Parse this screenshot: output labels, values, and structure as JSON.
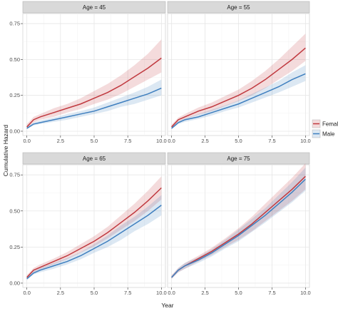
{
  "chart_data": {
    "type": "line",
    "xlabel": "Year",
    "ylabel": "Cumulative Hazard",
    "xlim": [
      -0.3,
      10.3
    ],
    "ylim": [
      -0.03,
      0.82
    ],
    "xticks": [
      0,
      2.5,
      5,
      7.5,
      10
    ],
    "xtick_labels": [
      "0.0",
      "2.5",
      "5.0",
      "7.5",
      "10.0"
    ],
    "yticks": [
      0,
      0.25,
      0.5,
      0.75
    ],
    "ytick_labels": [
      "0.00",
      "0.25",
      "0.50",
      "0.75"
    ],
    "grid": true,
    "legend_position": "right",
    "colors": {
      "Female": "#c0393f",
      "Male": "#3f7fbf",
      "strip_bg": "#d9d9d9"
    },
    "panels": [
      {
        "title": "Age = 45",
        "x": [
          0,
          0.5,
          1,
          2,
          3,
          4,
          5,
          6,
          7,
          8,
          9,
          10
        ],
        "series": [
          {
            "name": "Female",
            "values": [
              0.03,
              0.08,
              0.1,
              0.13,
              0.16,
              0.19,
              0.23,
              0.27,
              0.32,
              0.38,
              0.44,
              0.51
            ],
            "lower": [
              0.02,
              0.06,
              0.08,
              0.1,
              0.13,
              0.155,
              0.19,
              0.22,
              0.26,
              0.31,
              0.36,
              0.41
            ],
            "upper": [
              0.05,
              0.1,
              0.12,
              0.16,
              0.19,
              0.23,
              0.28,
              0.33,
              0.39,
              0.46,
              0.54,
              0.64
            ]
          },
          {
            "name": "Male",
            "values": [
              0.02,
              0.05,
              0.06,
              0.08,
              0.1,
              0.12,
              0.14,
              0.17,
              0.2,
              0.23,
              0.26,
              0.3
            ],
            "lower": [
              0.015,
              0.04,
              0.05,
              0.065,
              0.08,
              0.1,
              0.12,
              0.14,
              0.17,
              0.19,
              0.22,
              0.25
            ],
            "upper": [
              0.03,
              0.06,
              0.075,
              0.095,
              0.12,
              0.14,
              0.165,
              0.2,
              0.235,
              0.27,
              0.31,
              0.36
            ]
          }
        ]
      },
      {
        "title": "Age = 55",
        "x": [
          0,
          0.5,
          1,
          2,
          3,
          4,
          5,
          6,
          7,
          8,
          9,
          10
        ],
        "series": [
          {
            "name": "Female",
            "values": [
              0.03,
              0.08,
              0.1,
              0.14,
              0.17,
              0.21,
              0.25,
              0.3,
              0.36,
              0.43,
              0.5,
              0.58
            ],
            "lower": [
              0.02,
              0.065,
              0.085,
              0.115,
              0.14,
              0.175,
              0.21,
              0.25,
              0.3,
              0.36,
              0.42,
              0.49
            ],
            "upper": [
              0.045,
              0.095,
              0.12,
              0.165,
              0.2,
              0.245,
              0.29,
              0.35,
              0.42,
              0.5,
              0.59,
              0.68
            ]
          },
          {
            "name": "Male",
            "values": [
              0.02,
              0.06,
              0.08,
              0.1,
              0.13,
              0.16,
              0.19,
              0.23,
              0.27,
              0.31,
              0.36,
              0.4
            ],
            "lower": [
              0.015,
              0.05,
              0.065,
              0.085,
              0.11,
              0.14,
              0.165,
              0.2,
              0.235,
              0.27,
              0.31,
              0.35
            ],
            "upper": [
              0.03,
              0.07,
              0.09,
              0.12,
              0.15,
              0.18,
              0.215,
              0.26,
              0.305,
              0.35,
              0.41,
              0.46
            ]
          }
        ]
      },
      {
        "title": "Age = 65",
        "x": [
          0,
          0.5,
          1,
          2,
          3,
          4,
          5,
          6,
          7,
          8,
          9,
          10
        ],
        "series": [
          {
            "name": "Female",
            "values": [
              0.04,
              0.09,
              0.11,
              0.15,
              0.19,
              0.24,
              0.29,
              0.35,
              0.42,
              0.49,
              0.57,
              0.66
            ],
            "lower": [
              0.03,
              0.075,
              0.095,
              0.13,
              0.165,
              0.21,
              0.255,
              0.31,
              0.37,
              0.43,
              0.5,
              0.58
            ],
            "upper": [
              0.055,
              0.105,
              0.13,
              0.17,
              0.215,
              0.27,
              0.325,
              0.39,
              0.47,
              0.55,
              0.64,
              0.74
            ]
          },
          {
            "name": "Male",
            "values": [
              0.03,
              0.07,
              0.09,
              0.12,
              0.15,
              0.19,
              0.24,
              0.29,
              0.35,
              0.41,
              0.47,
              0.54
            ],
            "lower": [
              0.02,
              0.06,
              0.075,
              0.1,
              0.13,
              0.165,
              0.21,
              0.25,
              0.3,
              0.36,
              0.41,
              0.47
            ],
            "upper": [
              0.04,
              0.085,
              0.105,
              0.14,
              0.175,
              0.215,
              0.27,
              0.33,
              0.4,
              0.46,
              0.53,
              0.61
            ]
          }
        ]
      },
      {
        "title": "Age = 75",
        "x": [
          0,
          0.5,
          1,
          2,
          3,
          4,
          5,
          6,
          7,
          8,
          9,
          10
        ],
        "series": [
          {
            "name": "Female",
            "values": [
              0.04,
              0.09,
              0.12,
              0.17,
              0.22,
              0.28,
              0.34,
              0.41,
              0.49,
              0.57,
              0.65,
              0.74
            ],
            "lower": [
              0.03,
              0.075,
              0.1,
              0.15,
              0.195,
              0.25,
              0.3,
              0.36,
              0.43,
              0.5,
              0.57,
              0.65
            ],
            "upper": [
              0.055,
              0.105,
              0.14,
              0.19,
              0.245,
              0.31,
              0.38,
              0.46,
              0.55,
              0.64,
              0.73,
              0.83
            ]
          },
          {
            "name": "Male",
            "values": [
              0.04,
              0.09,
              0.12,
              0.16,
              0.21,
              0.27,
              0.33,
              0.4,
              0.47,
              0.55,
              0.63,
              0.72
            ],
            "lower": [
              0.03,
              0.075,
              0.1,
              0.14,
              0.185,
              0.24,
              0.29,
              0.355,
              0.42,
              0.49,
              0.56,
              0.64
            ],
            "upper": [
              0.05,
              0.105,
              0.14,
              0.18,
              0.235,
              0.3,
              0.37,
              0.445,
              0.52,
              0.61,
              0.7,
              0.8
            ]
          }
        ]
      }
    ],
    "legend": [
      {
        "name": "Female",
        "color": "#c0393f"
      },
      {
        "name": "Male",
        "color": "#3f7fbf"
      }
    ]
  }
}
